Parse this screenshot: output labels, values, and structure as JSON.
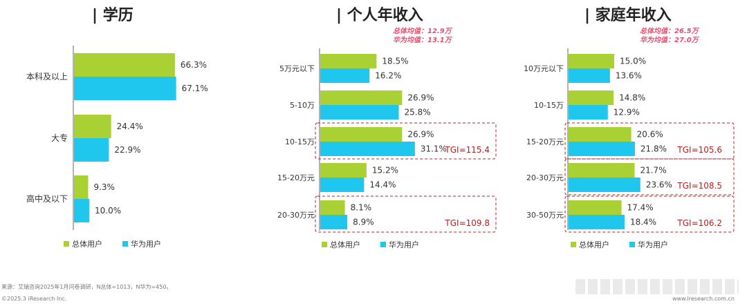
{
  "colors": {
    "overall": "#a9d134",
    "huawei": "#1fc6ee",
    "tgi": "#b22222",
    "avg": "#ea4c6c",
    "axis": "#666666"
  },
  "legend": {
    "overall": "总体用户",
    "huawei": "华为用户"
  },
  "chart_data": [
    {
      "type": "bar",
      "title": "| 学历",
      "categories": [
        "本科及以上",
        "大专",
        "高中及以下"
      ],
      "series": [
        {
          "name": "总体用户",
          "values": [
            66.3,
            24.4,
            9.3
          ]
        },
        {
          "name": "华为用户",
          "values": [
            67.1,
            22.9,
            10.0
          ]
        }
      ],
      "labels": [
        [
          "66.3%",
          "67.1%"
        ],
        [
          "24.4%",
          "22.9%"
        ],
        [
          "9.3%",
          "10.0%"
        ]
      ],
      "tgi": [],
      "avg": [],
      "xlim": [
        0,
        100
      ]
    },
    {
      "type": "bar",
      "title": "| 个人年收入",
      "categories": [
        "5万元以下",
        "5-10万",
        "10-15万",
        "15-20万元",
        "20-30万元"
      ],
      "series": [
        {
          "name": "总体用户",
          "values": [
            18.5,
            26.9,
            26.9,
            15.2,
            8.1
          ]
        },
        {
          "name": "华为用户",
          "values": [
            16.2,
            25.8,
            31.1,
            14.4,
            8.9
          ]
        }
      ],
      "labels": [
        [
          "18.5%",
          "16.2%"
        ],
        [
          "26.9%",
          "25.8%"
        ],
        [
          "26.9%",
          "31.1%"
        ],
        [
          "15.2%",
          "14.4%"
        ],
        [
          "8.1%",
          "8.9%"
        ]
      ],
      "tgi": [
        {
          "index": 2,
          "label": "TGI=115.4"
        },
        {
          "index": 4,
          "label": "TGI=109.8"
        }
      ],
      "avg": [
        "总体均值：12.9万",
        "华为均值：13.1万"
      ],
      "xlim": [
        0,
        40
      ]
    },
    {
      "type": "bar",
      "title": "| 家庭年收入",
      "categories": [
        "10万元以下",
        "10-15万",
        "15-20万元",
        "20-30万元",
        "30-50万元"
      ],
      "series": [
        {
          "name": "总体用户",
          "values": [
            15.0,
            14.8,
            20.6,
            21.7,
            17.4
          ]
        },
        {
          "name": "华为用户",
          "values": [
            13.6,
            12.9,
            21.8,
            23.6,
            18.4
          ]
        }
      ],
      "labels": [
        [
          "15.0%",
          "13.6%"
        ],
        [
          "14.8%",
          "12.9%"
        ],
        [
          "20.6%",
          "21.8%"
        ],
        [
          "21.7%",
          "23.6%"
        ],
        [
          "17.4%",
          "18.4%"
        ]
      ],
      "tgi": [
        {
          "index": 2,
          "label": "TGI=105.6"
        },
        {
          "index": 3,
          "label": "TGI=108.5"
        },
        {
          "index": 4,
          "label": "TGI=106.2"
        }
      ],
      "avg": [
        "总体均值：26.5万",
        "华为均值：27.0万"
      ],
      "xlim": [
        0,
        40
      ]
    }
  ],
  "footer": {
    "source": "来源：艾瑞咨询2025年1月问卷调研，N总体=1013，N华为=450。",
    "copyright": "©2025.3 iResearch Inc.",
    "url": "www.iresearch.com.cn"
  }
}
